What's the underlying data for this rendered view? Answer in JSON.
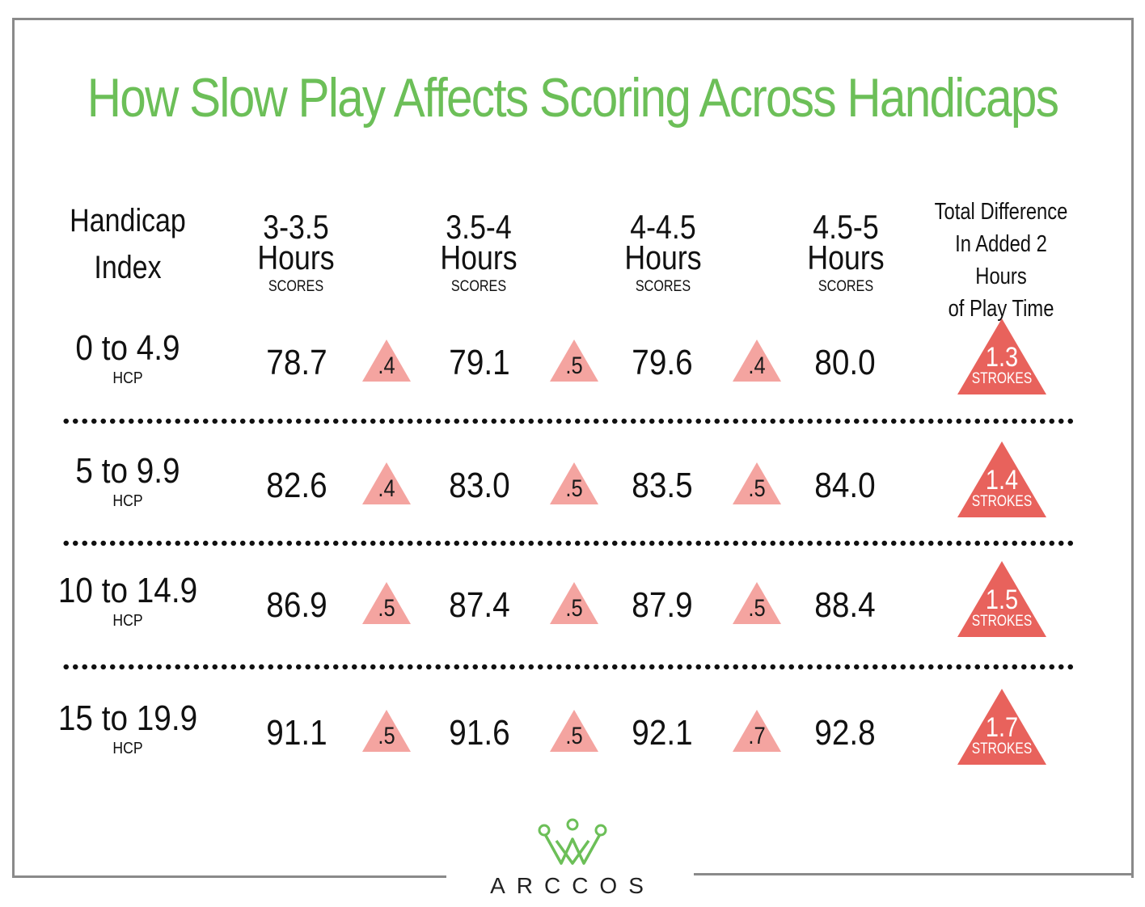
{
  "chart_data": {
    "type": "table",
    "title": "How Slow Play Affects Scoring Across Handicaps",
    "row_header": "Handicap Index",
    "row_unit": "HCP",
    "columns": [
      {
        "label": "3-3.5",
        "unit": "Hours",
        "sub": "SCORES"
      },
      {
        "label": "3.5-4",
        "unit": "Hours",
        "sub": "SCORES"
      },
      {
        "label": "4-4.5",
        "unit": "Hours",
        "sub": "SCORES"
      },
      {
        "label": "4.5-5",
        "unit": "Hours",
        "sub": "SCORES"
      }
    ],
    "total_header": [
      "Total Difference",
      "In Added 2 Hours",
      "of Play Time"
    ],
    "total_unit": "STROKES",
    "rows": [
      {
        "range": "0 to 4.9",
        "scores": [
          "78.7",
          "79.1",
          "79.6",
          "80.0"
        ],
        "deltas": [
          ".4",
          ".5",
          ".4"
        ],
        "total": "1.3"
      },
      {
        "range": "5 to 9.9",
        "scores": [
          "82.6",
          "83.0",
          "83.5",
          "84.0"
        ],
        "deltas": [
          ".4",
          ".5",
          ".5"
        ],
        "total": "1.4"
      },
      {
        "range": "10 to 14.9",
        "scores": [
          "86.9",
          "87.4",
          "87.9",
          "88.4"
        ],
        "deltas": [
          ".5",
          ".5",
          ".5"
        ],
        "total": "1.5"
      },
      {
        "range": "15 to 19.9",
        "scores": [
          "91.1",
          "91.6",
          "92.1",
          "92.8"
        ],
        "deltas": [
          ".5",
          ".5",
          ".7"
        ],
        "total": "1.7"
      }
    ],
    "colors": {
      "title": "#6cbf58",
      "delta": "#f4a4a0",
      "total": "#e8625c"
    }
  },
  "brand": {
    "name": "ARCCOS",
    "logo": "crown-logo-icon"
  }
}
